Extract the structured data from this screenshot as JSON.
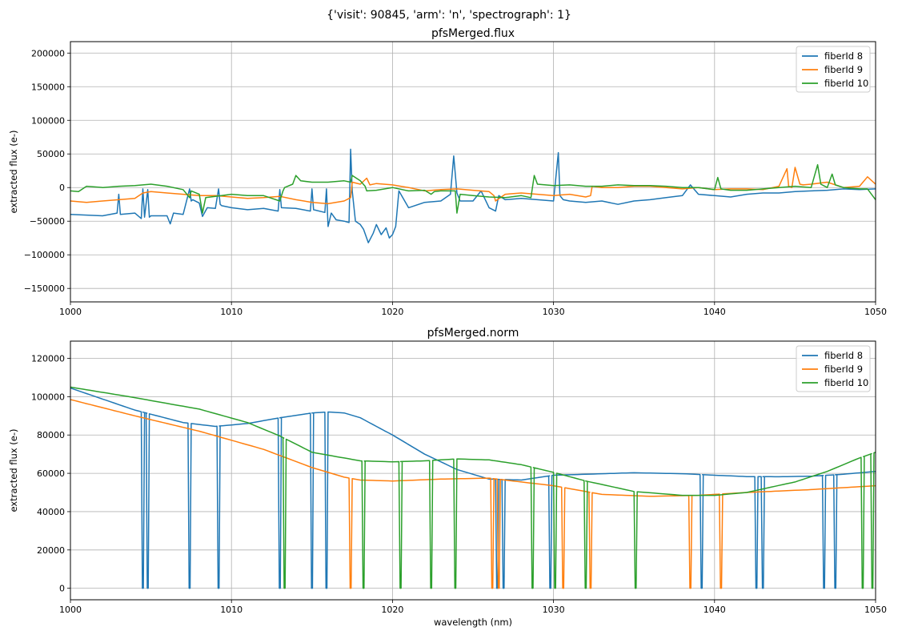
{
  "figure": {
    "suptitle": "{'visit': 90845, 'arm': 'n', 'spectrograph': 1}"
  },
  "colors": {
    "fiberId 8": "#1f77b4",
    "fiberId 9": "#ff7f0e",
    "fiberId 10": "#2ca02c",
    "grid": "#b0b0b0"
  },
  "chart_data": [
    {
      "type": "line",
      "title": "pfsMerged.flux",
      "xlabel": "",
      "ylabel": "extracted flux (e-)",
      "xlim": [
        1000,
        1050
      ],
      "ylim": [
        -170000,
        217000
      ],
      "xticks": [
        1000,
        1010,
        1020,
        1030,
        1040,
        1050
      ],
      "xticklabels": [
        "1000",
        "1010",
        "1020",
        "1030",
        "1040",
        "1050"
      ],
      "yticks": [
        -150000,
        -100000,
        -50000,
        0,
        50000,
        100000,
        150000,
        200000
      ],
      "yticklabels": [
        "−150000",
        "−100000",
        "−50000",
        "0",
        "50000",
        "100000",
        "150000",
        "200000"
      ],
      "grid": true,
      "legend": "top-right",
      "series": [
        {
          "name": "fiberId 8",
          "x": [
            1000,
            1002,
            1002.9,
            1003.0,
            1003.1,
            1004,
            1004.4,
            1004.5,
            1004.6,
            1004.8,
            1004.9,
            1005.0,
            1006,
            1006.2,
            1006.4,
            1007,
            1007.4,
            1007.5,
            1007.6,
            1008,
            1008.2,
            1008.5,
            1009,
            1009.2,
            1009.3,
            1009.4,
            1010,
            1011,
            1012,
            1012.9,
            1013.0,
            1013.1,
            1014,
            1014.9,
            1015.0,
            1015.1,
            1015.8,
            1015.9,
            1016.0,
            1016.2,
            1016.5,
            1017,
            1017.3,
            1017.4,
            1017.5,
            1017.7,
            1018,
            1018.2,
            1018.5,
            1018.8,
            1019,
            1019.3,
            1019.6,
            1019.8,
            1020,
            1020.2,
            1020.4,
            1021,
            1022,
            1023,
            1023.6,
            1023.8,
            1024.0,
            1024.2,
            1025,
            1025.5,
            1026,
            1026.4,
            1026.6,
            1027,
            1028,
            1029,
            1030,
            1030.3,
            1030.4,
            1030.6,
            1031,
            1032,
            1033,
            1034,
            1035,
            1036,
            1037,
            1038,
            1038.5,
            1039,
            1040,
            1041,
            1042,
            1043,
            1044,
            1045,
            1046,
            1047,
            1048,
            1049,
            1050
          ],
          "y": [
            -40000,
            -42000,
            -38000,
            -10000,
            -40000,
            -38000,
            -46000,
            -2000,
            -44000,
            -3000,
            -44000,
            -42000,
            -42000,
            -54000,
            -38000,
            -40000,
            -2000,
            -20000,
            -18000,
            -23000,
            -43000,
            -30000,
            -31000,
            -2000,
            -25000,
            -27000,
            -30000,
            -33000,
            -31000,
            -35000,
            -3000,
            -30000,
            -31000,
            -35000,
            -2000,
            -33000,
            -37000,
            -2000,
            -58000,
            -38000,
            -48000,
            -50000,
            -52000,
            57000,
            -5000,
            -50000,
            -55000,
            -62000,
            -82000,
            -68000,
            -55000,
            -70000,
            -60000,
            -75000,
            -70000,
            -58000,
            -5000,
            -30000,
            -22000,
            -20000,
            -10000,
            47000,
            -8000,
            -20000,
            -20000,
            -5000,
            -30000,
            -35000,
            -12000,
            -18000,
            -16000,
            -18000,
            -20000,
            52000,
            -12000,
            -18000,
            -20000,
            -22000,
            -20000,
            -25000,
            -20000,
            -18000,
            -15000,
            -12000,
            4000,
            -10000,
            -12000,
            -14000,
            -10000,
            -8000,
            -8000,
            -6000,
            -5000,
            -4000,
            -2000,
            -3000,
            -2000
          ]
        },
        {
          "name": "fiberId 9",
          "x": [
            1000,
            1001,
            1002,
            1003,
            1004,
            1004.5,
            1005,
            1006,
            1007,
            1008,
            1009,
            1010,
            1011,
            1012,
            1013,
            1014,
            1015,
            1016,
            1017,
            1017.4,
            1017.5,
            1018,
            1018.4,
            1018.6,
            1019,
            1020,
            1021,
            1022,
            1023,
            1024,
            1025,
            1026,
            1026.3,
            1026.4,
            1027,
            1028,
            1029,
            1030,
            1031,
            1032,
            1032.3,
            1032.4,
            1033,
            1034,
            1035,
            1036,
            1037,
            1038,
            1039,
            1040,
            1041,
            1042,
            1043,
            1044,
            1044.5,
            1044.6,
            1044.8,
            1045,
            1045.3,
            1045.5,
            1046,
            1047,
            1048,
            1049,
            1049.5,
            1050
          ],
          "y": [
            -20000,
            -22000,
            -20000,
            -18000,
            -16000,
            -8000,
            -6000,
            -8000,
            -10000,
            -12000,
            -12000,
            -14000,
            -16000,
            -15000,
            -13000,
            -18000,
            -22000,
            -24000,
            -20000,
            -15000,
            8000,
            5000,
            14000,
            4000,
            6000,
            4000,
            0,
            -5000,
            -3000,
            -2000,
            -4000,
            -6000,
            -12000,
            -20000,
            -10000,
            -8000,
            -10000,
            -12000,
            -10000,
            -14000,
            -12000,
            2000,
            0,
            0,
            2000,
            2000,
            0,
            -2000,
            0,
            -3000,
            -2000,
            -2000,
            -3000,
            2000,
            28000,
            2000,
            0,
            30000,
            5000,
            4000,
            5000,
            8000,
            0,
            2000,
            16000,
            5000
          ]
        },
        {
          "name": "fiberId 10",
          "x": [
            1000,
            1000.5,
            1001,
            1002,
            1003,
            1004,
            1005,
            1006,
            1007,
            1007.4,
            1007.5,
            1008,
            1008.2,
            1008.4,
            1009,
            1010,
            1011,
            1012,
            1013,
            1013.2,
            1013.3,
            1013.8,
            1014,
            1014.3,
            1015,
            1016,
            1017,
            1017.4,
            1017.5,
            1018,
            1018.3,
            1018.4,
            1019,
            1020,
            1021,
            1022,
            1022.4,
            1022.6,
            1023,
            1023.9,
            1024.0,
            1024.2,
            1025,
            1026,
            1027,
            1028,
            1028.6,
            1028.8,
            1029,
            1030,
            1031,
            1032,
            1033,
            1034,
            1035,
            1036,
            1037,
            1038,
            1039,
            1040,
            1040.2,
            1040.4,
            1041,
            1042,
            1043,
            1044,
            1045,
            1046,
            1046.4,
            1046.6,
            1047,
            1047.3,
            1047.5,
            1048,
            1049,
            1049.5,
            1050
          ],
          "y": [
            -5000,
            -6000,
            2000,
            0,
            2000,
            3000,
            5000,
            2000,
            -3000,
            -15000,
            -5000,
            -10000,
            -38000,
            -15000,
            -13000,
            -10000,
            -12000,
            -12000,
            -20000,
            -5000,
            0,
            5000,
            18000,
            10000,
            8000,
            8000,
            10000,
            8000,
            18000,
            10000,
            2000,
            -5000,
            -4000,
            0,
            -5000,
            -4000,
            -10000,
            -6000,
            -5000,
            -5000,
            -38000,
            -10000,
            -12000,
            -14000,
            -15000,
            -12000,
            -15000,
            18000,
            5000,
            3000,
            4000,
            2000,
            2000,
            4000,
            3000,
            3000,
            2000,
            0,
            0,
            -3000,
            15000,
            -2000,
            -4000,
            -4000,
            -2000,
            0,
            2000,
            0,
            34000,
            5000,
            0,
            20000,
            4000,
            0,
            -2000,
            -2000,
            -18000
          ]
        }
      ]
    },
    {
      "type": "line",
      "title": "pfsMerged.norm",
      "xlabel": "wavelength (nm)",
      "ylabel": "extracted flux (e-)",
      "xlim": [
        1000,
        1050
      ],
      "ylim": [
        -6000,
        129000
      ],
      "xticks": [
        1000,
        1010,
        1020,
        1030,
        1040,
        1050
      ],
      "xticklabels": [
        "1000",
        "1010",
        "1020",
        "1030",
        "1040",
        "1050"
      ],
      "yticks": [
        0,
        20000,
        40000,
        60000,
        80000,
        100000,
        120000
      ],
      "yticklabels": [
        "0",
        "20000",
        "40000",
        "60000",
        "80000",
        "100000",
        "120000"
      ],
      "grid": true,
      "legend": "top-right",
      "series": [
        {
          "name": "fiberId 8",
          "base": {
            "x": [
              1000,
              1004,
              1007,
              1009,
              1011,
              1013,
              1015,
              1016,
              1017,
              1018,
              1020,
              1022,
              1024,
              1026,
              1028,
              1030,
              1032,
              1035,
              1038,
              1040,
              1042,
              1044,
              1046,
              1048,
              1050
            ],
            "y": [
              104500,
              93000,
              86500,
              84500,
              86000,
              89000,
              91500,
              92000,
              91500,
              89000,
              80000,
              70000,
              62000,
              57000,
              56500,
              59000,
              59500,
              60300,
              59800,
              59000,
              58300,
              58200,
              58500,
              59500,
              61000
            ]
          },
          "gaps": [
            1004.5,
            1004.8,
            1007.4,
            1009.2,
            1013.0,
            1015.0,
            1015.9,
            1026.5,
            1026.9,
            1029.8,
            1039.2,
            1042.6,
            1043.0,
            1046.8,
            1047.5
          ]
        },
        {
          "name": "fiberId 9",
          "base": {
            "x": [
              1000,
              1004,
              1008,
              1012,
              1015,
              1017,
              1018,
              1020,
              1023,
              1026,
              1030,
              1033,
              1036,
              1039,
              1042,
              1046,
              1050
            ],
            "y": [
              98500,
              90000,
              82000,
              72500,
              63000,
              58000,
              56500,
              56000,
              57000,
              57500,
              53500,
              49000,
              48000,
              48500,
              50000,
              51500,
              53500
            ]
          },
          "gaps": [
            1017.4,
            1026.2,
            1026.6,
            1030.6,
            1032.3,
            1038.5,
            1040.4
          ]
        },
        {
          "name": "fiberId 10",
          "base": {
            "x": [
              1000,
              1004,
              1008,
              1011,
              1013,
              1015,
              1018,
              1020,
              1022,
              1024,
              1026,
              1028,
              1030,
              1032,
              1035,
              1038,
              1040,
              1042,
              1045,
              1047,
              1049,
              1050
            ],
            "y": [
              105000,
              99500,
              93500,
              86500,
              79500,
              71000,
              66500,
              66000,
              66500,
              67500,
              67000,
              64500,
              60500,
              56000,
              50500,
              48500,
              48500,
              50000,
              55500,
              61000,
              68000,
              71000
            ]
          },
          "gaps": [
            1013.3,
            1018.2,
            1020.5,
            1022.4,
            1023.9,
            1028.7,
            1030.1,
            1032.0,
            1035.1,
            1049.2,
            1049.8
          ]
        }
      ]
    }
  ]
}
